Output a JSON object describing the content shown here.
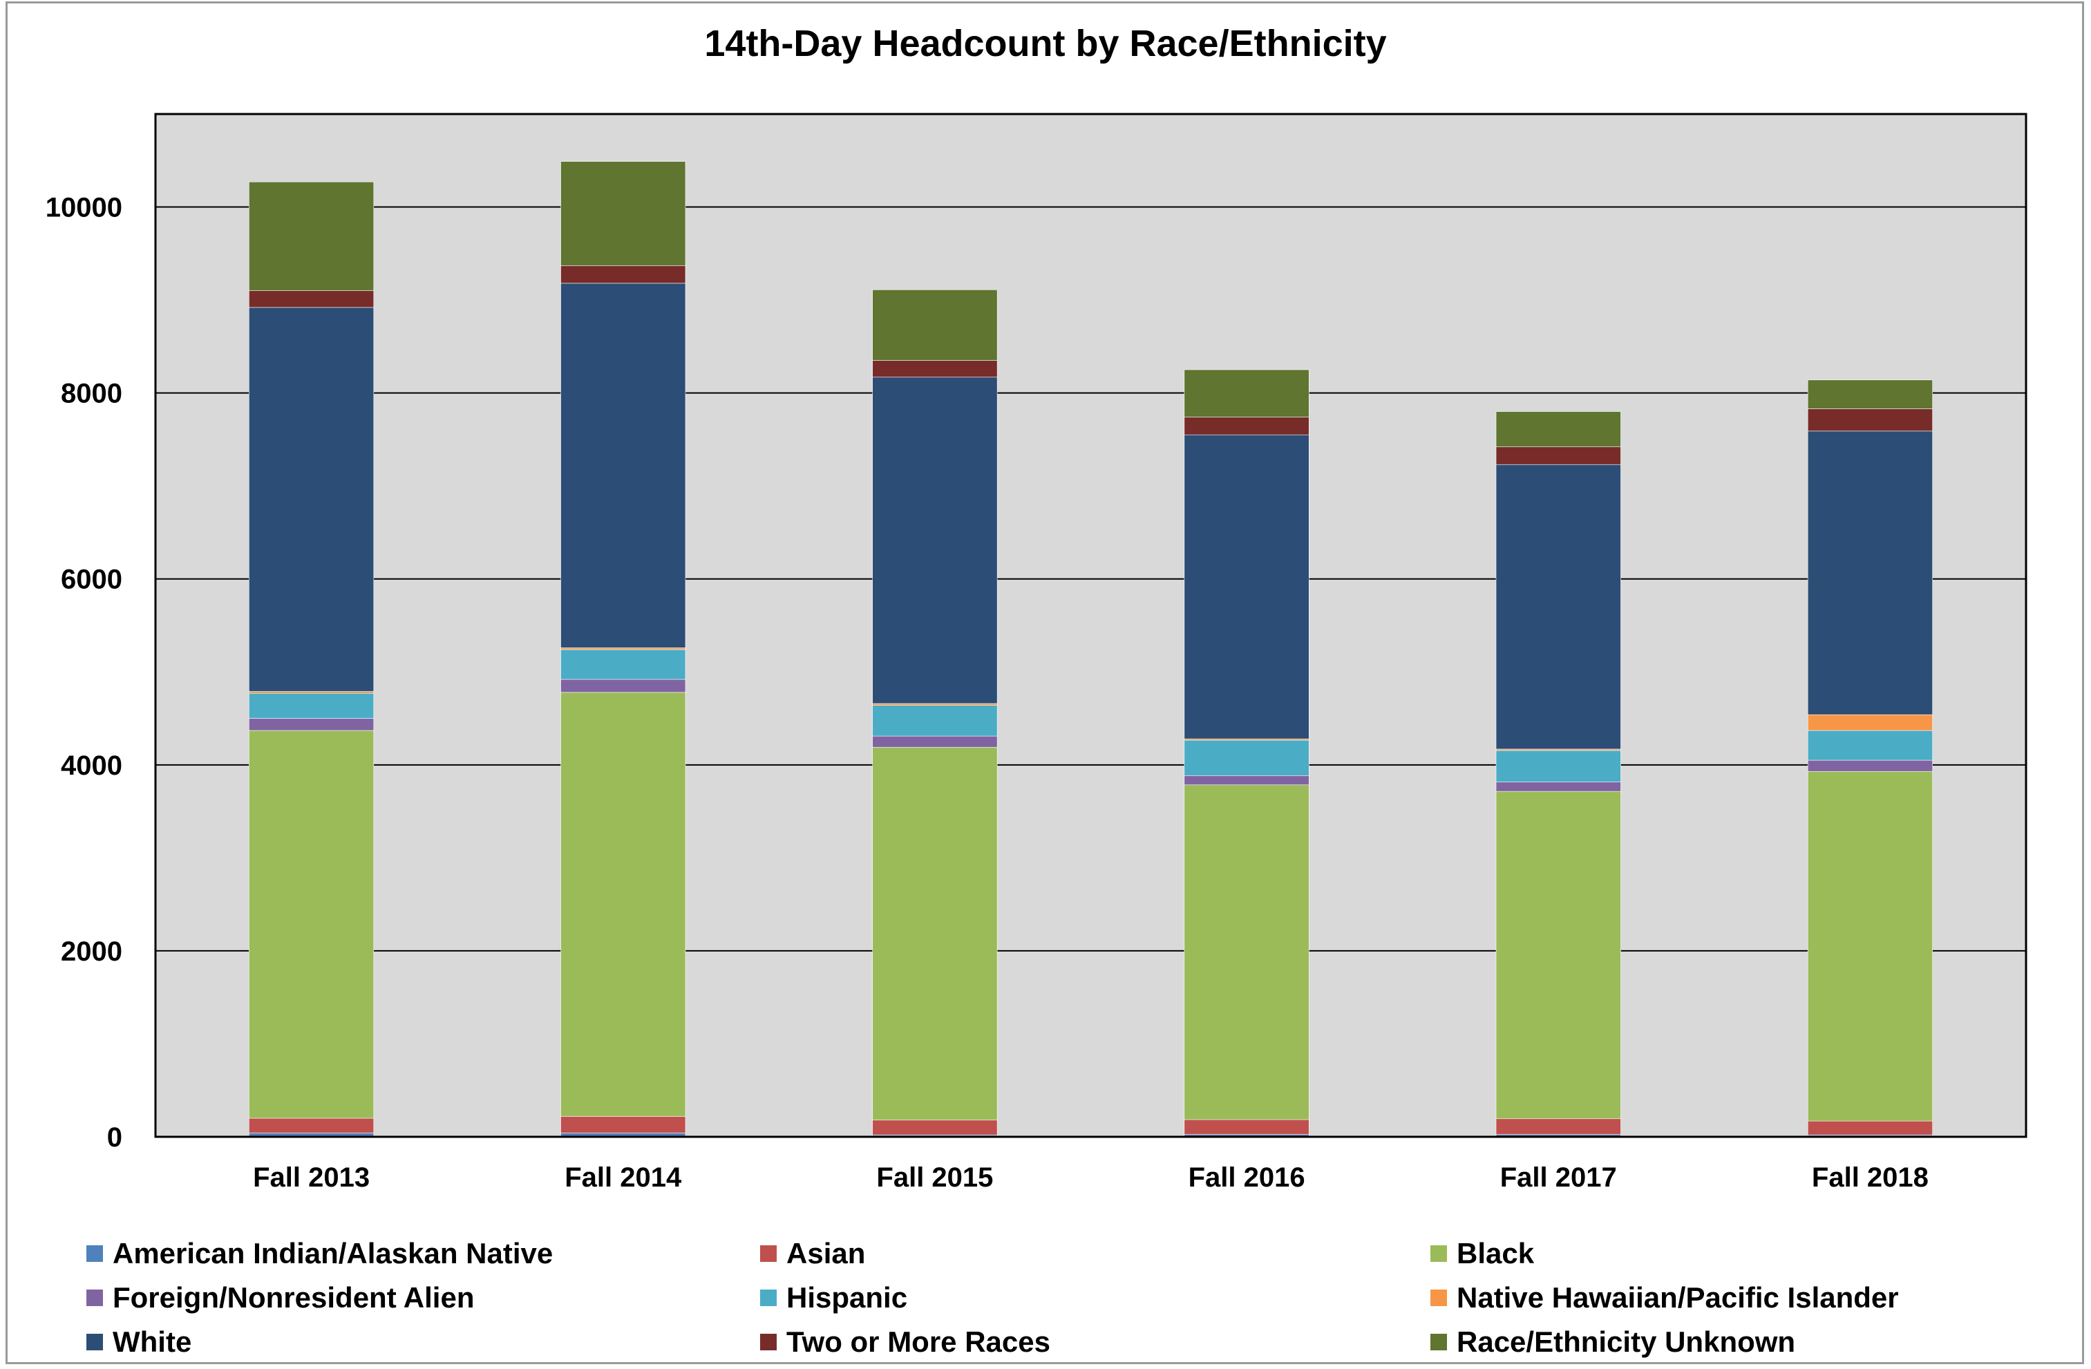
{
  "chart_data": {
    "type": "bar",
    "stacked": true,
    "title": "14th-Day Headcount by Race/Ethnicity",
    "xlabel": "",
    "ylabel": "",
    "ylim": [
      0,
      11000
    ],
    "yticks": [
      0,
      2000,
      4000,
      6000,
      8000,
      10000
    ],
    "grid": true,
    "legend_position": "bottom",
    "categories": [
      "Fall 2013",
      "Fall 2014",
      "Fall 2015",
      "Fall 2016",
      "Fall 2017",
      "Fall 2018"
    ],
    "series": [
      {
        "name": "American Indian/Alaskan Native",
        "color": "#4f81bd",
        "values": [
          40,
          40,
          20,
          25,
          25,
          20
        ]
      },
      {
        "name": "Asian",
        "color": "#c0504d",
        "values": [
          160,
          180,
          160,
          160,
          170,
          150
        ]
      },
      {
        "name": "Black",
        "color": "#9bbb59",
        "values": [
          4170,
          4560,
          4010,
          3600,
          3520,
          3760
        ]
      },
      {
        "name": "Foreign/Nonresident Alien",
        "color": "#8064a2",
        "values": [
          130,
          140,
          120,
          100,
          100,
          120
        ]
      },
      {
        "name": "Hispanic",
        "color": "#4bacc6",
        "values": [
          270,
          320,
          330,
          380,
          340,
          320
        ]
      },
      {
        "name": "Native Hawaiian/Pacific Islander",
        "color": "#f79646",
        "values": [
          20,
          20,
          20,
          15,
          15,
          170
        ]
      },
      {
        "name": "White",
        "color": "#2c4d75",
        "values": [
          4130,
          3920,
          3510,
          3270,
          3060,
          3050
        ]
      },
      {
        "name": "Two or More Races",
        "color": "#772c2a",
        "values": [
          180,
          190,
          180,
          190,
          190,
          240
        ]
      },
      {
        "name": "Race/Ethnicity Unknown",
        "color": "#5f7530",
        "values": [
          1170,
          1120,
          760,
          510,
          380,
          310
        ]
      }
    ]
  }
}
